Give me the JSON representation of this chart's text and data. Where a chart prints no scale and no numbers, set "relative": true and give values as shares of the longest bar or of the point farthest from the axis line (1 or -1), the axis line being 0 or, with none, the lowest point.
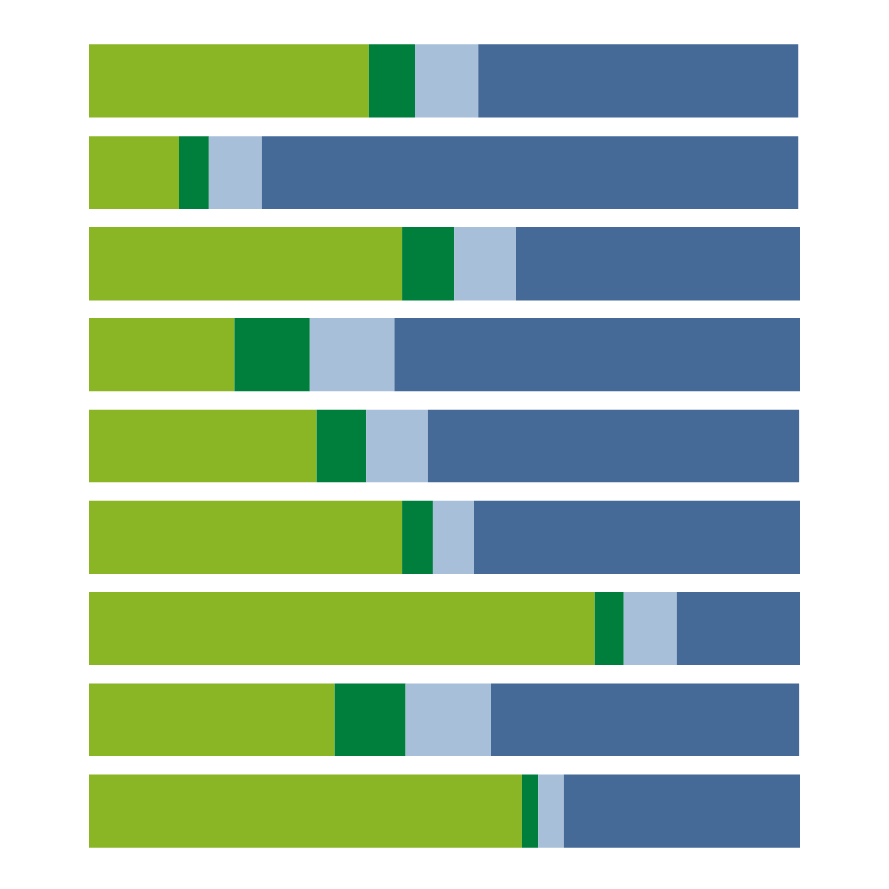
{
  "chart_data": {
    "type": "bar",
    "orientation": "horizontal",
    "stacked": true,
    "relative": true,
    "categories": [
      null,
      null,
      null,
      null,
      null,
      null,
      null,
      null,
      null
    ],
    "series": [
      {
        "color": "#8ab626",
        "values": [
          0.393,
          0.127,
          0.441,
          0.205,
          0.32,
          0.441,
          0.711,
          0.345,
          0.609
        ]
      },
      {
        "color": "#007f3c",
        "values": [
          0.066,
          0.041,
          0.073,
          0.105,
          0.07,
          0.043,
          0.041,
          0.1,
          0.023
        ]
      },
      {
        "color": "#a7bfd9",
        "values": [
          0.089,
          0.075,
          0.086,
          0.12,
          0.086,
          0.057,
          0.075,
          0.12,
          0.036
        ]
      },
      {
        "color": "#456a98",
        "values": [
          0.45,
          0.755,
          0.4,
          0.57,
          0.523,
          0.459,
          0.173,
          0.434,
          0.332
        ]
      }
    ]
  }
}
